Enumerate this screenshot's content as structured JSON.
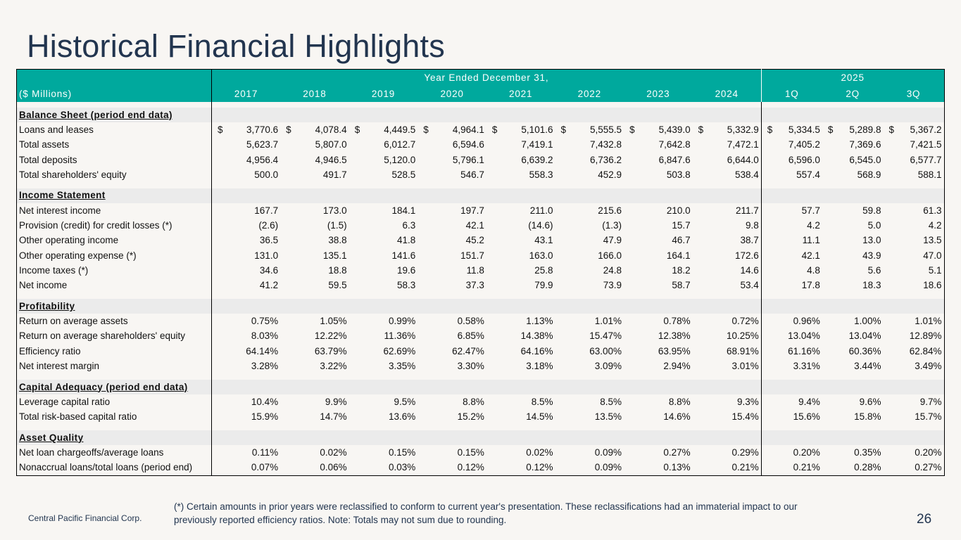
{
  "title": "Historical Financial Highlights",
  "header": {
    "group_years": "Year Ended December 31,",
    "group_2025": "2025",
    "unit_label": "($ Millions)",
    "columns": [
      "2017",
      "2018",
      "2019",
      "2020",
      "2021",
      "2022",
      "2023",
      "2024",
      "1Q",
      "2Q",
      "3Q"
    ]
  },
  "sections": [
    {
      "heading": "Balance Sheet (period end data)",
      "rows": [
        {
          "label": "Loans and leases",
          "dollar": true,
          "values": [
            "3,770.6",
            "4,078.4",
            "4,449.5",
            "4,964.1",
            "5,101.6",
            "5,555.5",
            "5,439.0",
            "5,332.9",
            "5,334.5",
            "5,289.8",
            "5,367.2"
          ]
        },
        {
          "label": "Total assets",
          "values": [
            "5,623.7",
            "5,807.0",
            "6,012.7",
            "6,594.6",
            "7,419.1",
            "7,432.8",
            "7,642.8",
            "7,472.1",
            "7,405.2",
            "7,369.6",
            "7,421.5"
          ]
        },
        {
          "label": "Total deposits",
          "values": [
            "4,956.4",
            "4,946.5",
            "5,120.0",
            "5,796.1",
            "6,639.2",
            "6,736.2",
            "6,847.6",
            "6,644.0",
            "6,596.0",
            "6,545.0",
            "6,577.7"
          ]
        },
        {
          "label": "Total shareholders' equity",
          "values": [
            "500.0",
            "491.7",
            "528.5",
            "546.7",
            "558.3",
            "452.9",
            "503.8",
            "538.4",
            "557.4",
            "568.9",
            "588.1"
          ]
        }
      ]
    },
    {
      "heading": "Income Statement",
      "rows": [
        {
          "label": "Net interest income",
          "values": [
            "167.7",
            "173.0",
            "184.1",
            "197.7",
            "211.0",
            "215.6",
            "210.0",
            "211.7",
            "57.7",
            "59.8",
            "61.3"
          ]
        },
        {
          "label": "Provision (credit) for credit losses (*)",
          "values": [
            "(2.6)",
            "(1.5)",
            "6.3",
            "42.1",
            "(14.6)",
            "(1.3)",
            "15.7",
            "9.8",
            "4.2",
            "5.0",
            "4.2"
          ]
        },
        {
          "label": "Other operating income",
          "values": [
            "36.5",
            "38.8",
            "41.8",
            "45.2",
            "43.1",
            "47.9",
            "46.7",
            "38.7",
            "11.1",
            "13.0",
            "13.5"
          ]
        },
        {
          "label": "Other operating expense  (*)",
          "values": [
            "131.0",
            "135.1",
            "141.6",
            "151.7",
            "163.0",
            "166.0",
            "164.1",
            "172.6",
            "42.1",
            "43.9",
            "47.0"
          ]
        },
        {
          "label": "Income taxes (*)",
          "values": [
            "34.6",
            "18.8",
            "19.6",
            "11.8",
            "25.8",
            "24.8",
            "18.2",
            "14.6",
            "4.8",
            "5.6",
            "5.1"
          ]
        },
        {
          "label": "Net income",
          "values": [
            "41.2",
            "59.5",
            "58.3",
            "37.3",
            "79.9",
            "73.9",
            "58.7",
            "53.4",
            "17.8",
            "18.3",
            "18.6"
          ]
        }
      ]
    },
    {
      "heading": "Profitability",
      "rows": [
        {
          "label": "Return on average assets",
          "values": [
            "0.75%",
            "1.05%",
            "0.99%",
            "0.58%",
            "1.13%",
            "1.01%",
            "0.78%",
            "0.72%",
            "0.96%",
            "1.00%",
            "1.01%"
          ]
        },
        {
          "label": "Return on average shareholders' equity",
          "values": [
            "8.03%",
            "12.22%",
            "11.36%",
            "6.85%",
            "14.38%",
            "15.47%",
            "12.38%",
            "10.25%",
            "13.04%",
            "13.04%",
            "12.89%"
          ]
        },
        {
          "label": "Efficiency ratio",
          "values": [
            "64.14%",
            "63.79%",
            "62.69%",
            "62.47%",
            "64.16%",
            "63.00%",
            "63.95%",
            "68.91%",
            "61.16%",
            "60.36%",
            "62.84%"
          ]
        },
        {
          "label": "Net interest margin",
          "values": [
            "3.28%",
            "3.22%",
            "3.35%",
            "3.30%",
            "3.18%",
            "3.09%",
            "2.94%",
            "3.01%",
            "3.31%",
            "3.44%",
            "3.49%"
          ]
        }
      ]
    },
    {
      "heading": "Capital Adequacy (period end data)",
      "rows": [
        {
          "label": "Leverage capital ratio",
          "values": [
            "10.4%",
            "9.9%",
            "9.5%",
            "8.8%",
            "8.5%",
            "8.5%",
            "8.8%",
            "9.3%",
            "9.4%",
            "9.6%",
            "9.7%"
          ]
        },
        {
          "label": "Total risk-based capital ratio",
          "values": [
            "15.9%",
            "14.7%",
            "13.6%",
            "15.2%",
            "14.5%",
            "13.5%",
            "14.6%",
            "15.4%",
            "15.6%",
            "15.8%",
            "15.7%"
          ]
        }
      ]
    },
    {
      "heading": "Asset Quality",
      "rows": [
        {
          "label": "Net loan chargeoffs/average loans",
          "values": [
            "0.11%",
            "0.02%",
            "0.15%",
            "0.15%",
            "0.02%",
            "0.09%",
            "0.27%",
            "0.29%",
            "0.20%",
            "0.35%",
            "0.20%"
          ]
        },
        {
          "label": "Nonaccrual loans/total loans (period end)",
          "values": [
            "0.07%",
            "0.06%",
            "0.03%",
            "0.12%",
            "0.12%",
            "0.09%",
            "0.13%",
            "0.21%",
            "0.21%",
            "0.28%",
            "0.27%"
          ]
        }
      ]
    }
  ],
  "footer": {
    "company": "Central Pacific Financial Corp.",
    "note": "(*) Certain amounts in prior years were reclassified to conform to current year's presentation. These reclassifications had an immaterial impact to our previously reported efficiency ratios. Note: Totals may not sum due to rounding.",
    "page_number": "26"
  },
  "colors": {
    "header_teal": "#00a99d",
    "title_navy": "#22354f",
    "section_gray": "#ebebeb"
  }
}
